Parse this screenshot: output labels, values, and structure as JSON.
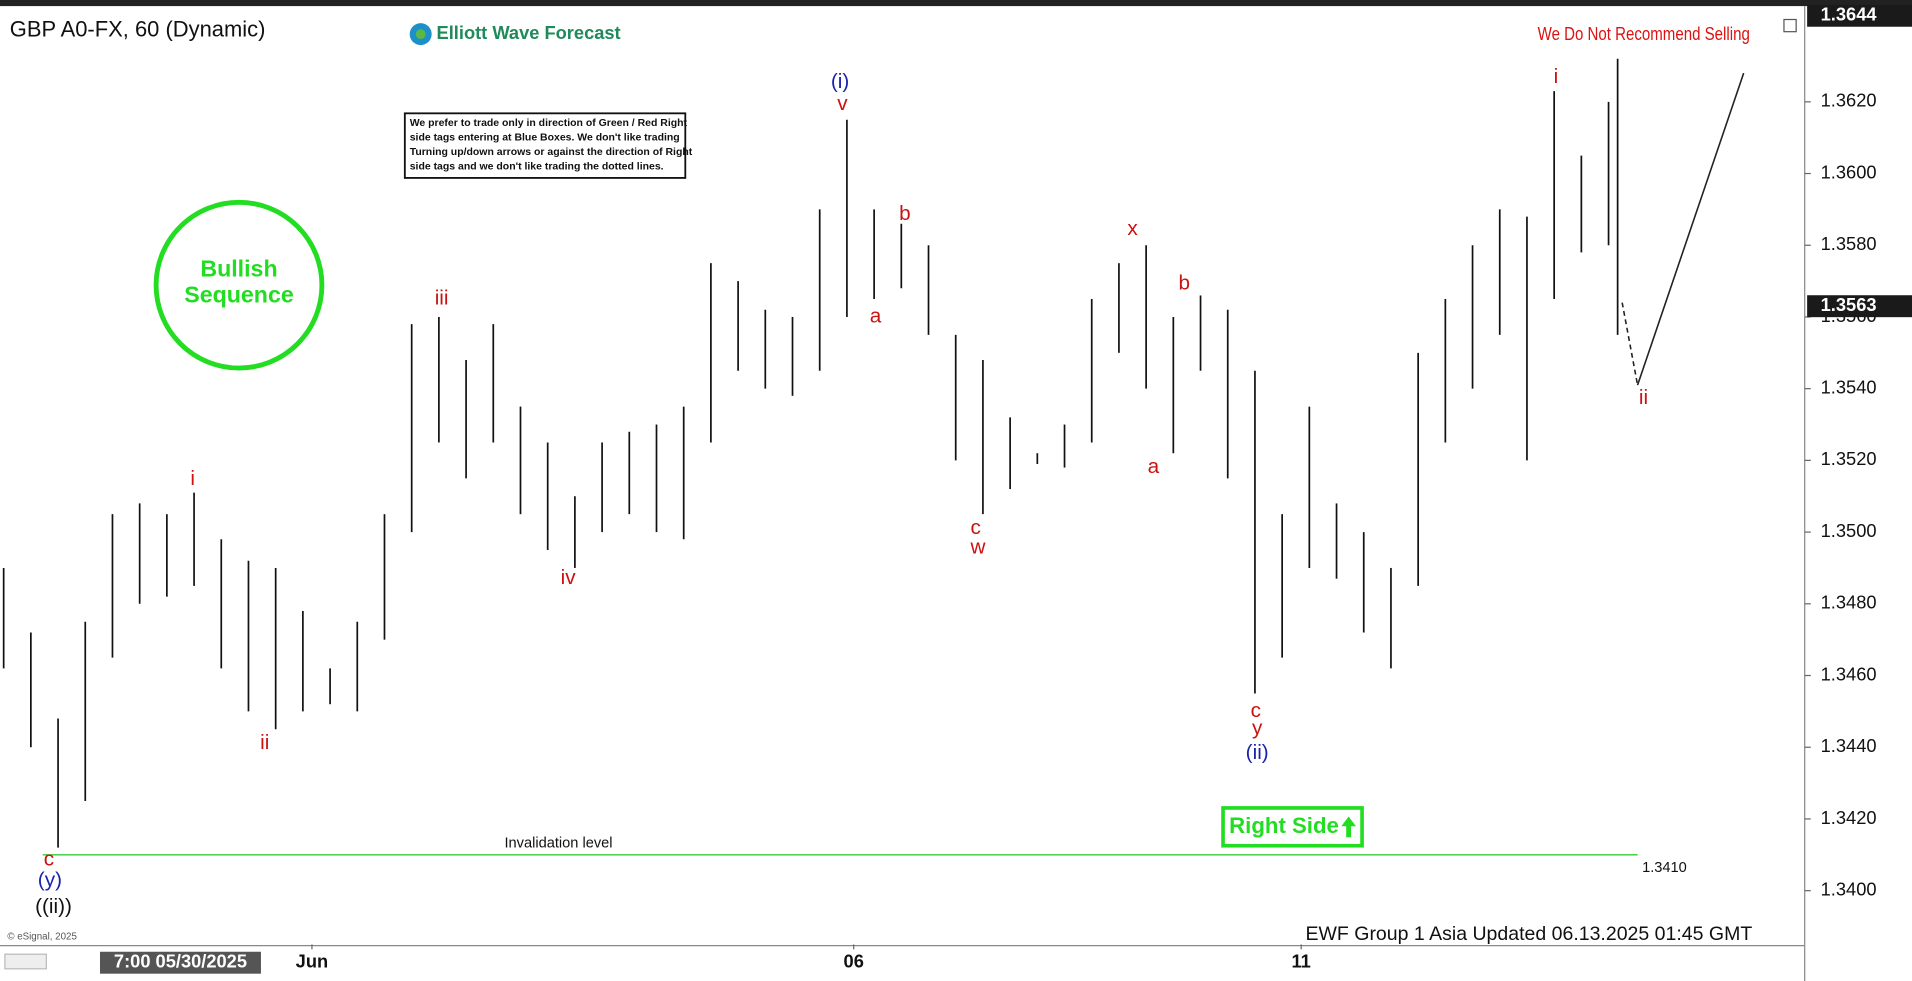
{
  "chart_data": {
    "type": "ohlc",
    "title": "GBP A0-FX, 60 (Dynamic)",
    "logo": "Elliott Wave Forecast",
    "note": [
      "We prefer to trade only in direction of Green / Red Right",
      "side tags entering at Blue Boxes. We don't like trading",
      "Turning up/down arrows or against the direction of Right",
      "side tags and we don't like trading the dotted lines."
    ],
    "badge": [
      "Bullish",
      "Sequence"
    ],
    "warning": "We Do Not Recommend Selling",
    "right_side": "Right Side",
    "footer": "EWF Group 1 Asia Updated 06.13.2025 01:45 GMT",
    "copyright": "© eSignal, 2025",
    "color": "#111111",
    "xlim": [
      0,
      390
    ],
    "ylim": [
      1.3385,
      1.3645
    ],
    "yticks": [
      {
        "value": 1.34,
        "label": "1.3400"
      },
      {
        "value": 1.342,
        "label": "1.3420"
      },
      {
        "value": 1.344,
        "label": "1.3440"
      },
      {
        "value": 1.346,
        "label": "1.3460"
      },
      {
        "value": 1.348,
        "label": "1.3480"
      },
      {
        "value": 1.35,
        "label": "1.3500"
      },
      {
        "value": 1.352,
        "label": "1.3520"
      },
      {
        "value": 1.354,
        "label": "1.3540"
      },
      {
        "value": 1.356,
        "label": "1.3560"
      },
      {
        "value": 1.358,
        "label": "1.3580"
      },
      {
        "value": 1.36,
        "label": "1.3600"
      },
      {
        "value": 1.362,
        "label": "1.3620"
      }
    ],
    "xticks": [
      {
        "value": 68,
        "label": "Jun"
      },
      {
        "value": 187.5,
        "label": "06"
      },
      {
        "value": 286.2,
        "label": "11"
      }
    ],
    "cursor": {
      "value": 39,
      "label": "7:00 05/30/2025"
    },
    "x": [
      0,
      6,
      12,
      18,
      24,
      30,
      36,
      42,
      48,
      54,
      60,
      66,
      72,
      78,
      84,
      90,
      96,
      102,
      108,
      114,
      120,
      126,
      132,
      138,
      144,
      150,
      156,
      162,
      168,
      174,
      180,
      186,
      192,
      198,
      204,
      210,
      216,
      222,
      228,
      234,
      240,
      246,
      252,
      258,
      264,
      270,
      276,
      282,
      288,
      294,
      300,
      306,
      312,
      318,
      324,
      330,
      336,
      342,
      348,
      354,
      356
    ],
    "high": [
      1.349,
      1.3472,
      1.3448,
      1.3475,
      1.3505,
      1.3508,
      1.3505,
      1.3511,
      1.3498,
      1.3492,
      1.349,
      1.3478,
      1.3462,
      1.3475,
      1.3505,
      1.3558,
      1.356,
      1.3548,
      1.3558,
      1.3535,
      1.3525,
      1.351,
      1.3525,
      1.3528,
      1.353,
      1.3535,
      1.3575,
      1.357,
      1.3562,
      1.356,
      1.359,
      1.3615,
      1.359,
      1.3586,
      1.358,
      1.3555,
      1.3548,
      1.3532,
      1.3522,
      1.353,
      1.3565,
      1.3575,
      1.358,
      1.356,
      1.3566,
      1.3562,
      1.3545,
      1.3505,
      1.3535,
      1.3508,
      1.35,
      1.349,
      1.355,
      1.3565,
      1.358,
      1.359,
      1.3588,
      1.3623,
      1.3605,
      1.362,
      1.3632
    ],
    "low": [
      1.3462,
      1.344,
      1.3412,
      1.3425,
      1.3465,
      1.348,
      1.3482,
      1.3485,
      1.3462,
      1.345,
      1.3445,
      1.345,
      1.3452,
      1.345,
      1.347,
      1.35,
      1.3525,
      1.3515,
      1.3525,
      1.3505,
      1.3495,
      1.349,
      1.35,
      1.3505,
      1.35,
      1.3498,
      1.3525,
      1.3545,
      1.354,
      1.3538,
      1.3545,
      1.356,
      1.3565,
      1.3568,
      1.3555,
      1.352,
      1.3505,
      1.3512,
      1.3519,
      1.3518,
      1.3525,
      1.355,
      1.354,
      1.3522,
      1.3545,
      1.3515,
      1.3455,
      1.3465,
      1.349,
      1.3487,
      1.3472,
      1.3462,
      1.3485,
      1.3525,
      1.354,
      1.3555,
      1.352,
      1.3565,
      1.3578,
      1.358,
      1.3555
    ],
    "projection_dashed": {
      "x": [
        357.0,
        360.4
      ],
      "y": [
        1.3564,
        1.3541
      ]
    },
    "projection_solid": {
      "x": [
        360.4,
        383.8
      ],
      "y": [
        1.3541,
        1.3628
      ]
    },
    "invalidation": {
      "label": "Invalidation level",
      "value": 1.341,
      "value_label": "1.3410",
      "color": "#33cc33"
    },
    "price_tags": [
      {
        "value": 1.3644,
        "label": "1.3644"
      },
      {
        "value": 1.3563,
        "label": "1.3563"
      }
    ],
    "annotations": [
      {
        "text": "c",
        "x": 10.0,
        "y": 1.34085,
        "color": "#cc1111"
      },
      {
        "text": "(y)",
        "x": 10.2,
        "y": 1.34027,
        "color": "#1a22aa"
      },
      {
        "text": "((ii))",
        "x": 11.0,
        "y": 1.33953,
        "color": "#111111"
      },
      {
        "text": "i",
        "x": 41.7,
        "y": 1.35146,
        "color": "#cc1111"
      },
      {
        "text": "ii",
        "x": 57.6,
        "y": 1.3441,
        "color": "#cc1111"
      },
      {
        "text": "iii",
        "x": 96.6,
        "y": 1.3565,
        "color": "#cc1111"
      },
      {
        "text": "iv",
        "x": 124.5,
        "y": 1.3487,
        "color": "#cc1111"
      },
      {
        "text": "(i)",
        "x": 184.5,
        "y": 1.36254,
        "color": "#1a22aa"
      },
      {
        "text": "v",
        "x": 185.0,
        "y": 1.36193,
        "color": "#cc1111"
      },
      {
        "text": "a",
        "x": 192.3,
        "y": 1.356,
        "color": "#cc1111"
      },
      {
        "text": "b",
        "x": 198.8,
        "y": 1.35885,
        "color": "#cc1111"
      },
      {
        "text": "c",
        "x": 214.4,
        "y": 1.3501,
        "color": "#cc1111"
      },
      {
        "text": "w",
        "x": 214.9,
        "y": 1.34956,
        "color": "#cc1111"
      },
      {
        "text": "x",
        "x": 249.0,
        "y": 1.35844,
        "color": "#cc1111"
      },
      {
        "text": "a",
        "x": 253.6,
        "y": 1.3518,
        "color": "#cc1111"
      },
      {
        "text": "b",
        "x": 260.4,
        "y": 1.35692,
        "color": "#cc1111"
      },
      {
        "text": "c",
        "x": 276.2,
        "y": 1.345,
        "color": "#cc1111"
      },
      {
        "text": "y",
        "x": 276.5,
        "y": 1.34451,
        "color": "#cc1111"
      },
      {
        "text": "(ii)",
        "x": 276.5,
        "y": 1.34383,
        "color": "#1a22aa"
      },
      {
        "text": "i",
        "x": 342.4,
        "y": 1.36268,
        "color": "#cc1111"
      },
      {
        "text": "ii",
        "x": 361.7,
        "y": 1.35373,
        "color": "#cc1111"
      }
    ]
  }
}
